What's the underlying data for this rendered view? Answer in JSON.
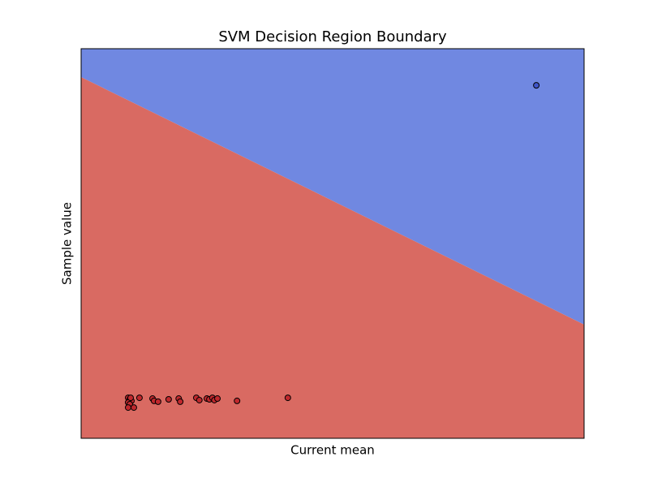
{
  "chart_data": {
    "type": "scatter",
    "title": "SVM Decision Region Boundary",
    "x_label": "Current mean",
    "y_label": "Sample value",
    "xlim": [
      0,
      100
    ],
    "ylim": [
      0,
      100
    ],
    "regions": {
      "boundary_x": [
        0,
        100
      ],
      "boundary_y": [
        92.7,
        29.2
      ],
      "above_color": "#7088e1",
      "below_color": "#d96a62"
    },
    "series": [
      {
        "color": "#c0282d",
        "x": [
          9.35,
          9.68,
          10.0,
          9.35,
          9.68,
          10.48,
          9.35,
          9.84,
          11.6,
          14.2,
          14.5,
          15.3,
          17.4,
          19.4,
          19.7,
          22.9,
          23.5,
          25.0,
          25.5,
          26.1,
          26.5,
          27.1,
          31.0,
          41.1
        ],
        "y": [
          10.4,
          10.0,
          9.6,
          9.2,
          8.75,
          7.9,
          7.9,
          10.4,
          10.4,
          10.2,
          9.6,
          9.4,
          10.0,
          10.2,
          9.4,
          10.4,
          9.8,
          10.2,
          10.0,
          10.4,
          9.8,
          10.2,
          9.6,
          10.4
        ]
      },
      {
        "color": "#3f55c8",
        "x": [
          90.5
        ],
        "y": [
          90.6
        ]
      }
    ]
  }
}
